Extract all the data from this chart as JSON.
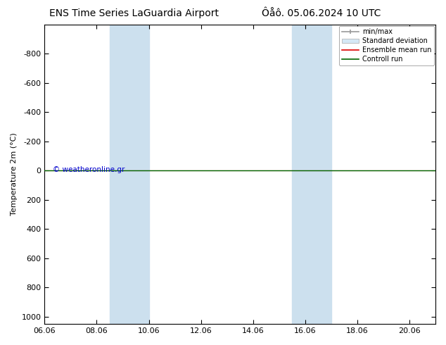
{
  "title_left": "ENS Time Series LaGuardia Airport",
  "title_right": "Ôåô. 05.06.2024 10 UTC",
  "ylabel": "Temperature 2m (°C)",
  "ylim": [
    -1000,
    1050
  ],
  "yticks": [
    -800,
    -600,
    -400,
    -200,
    0,
    200,
    400,
    600,
    800,
    1000
  ],
  "xlim": [
    0,
    15
  ],
  "xtick_labels": [
    "06.06",
    "08.06",
    "10.06",
    "12.06",
    "14.06",
    "16.06",
    "18.06",
    "20.06"
  ],
  "xtick_positions": [
    0,
    2,
    4,
    6,
    8,
    10,
    12,
    14
  ],
  "shade_regions": [
    {
      "start": 2.5,
      "end": 4.0,
      "color": "#cce0ee"
    },
    {
      "start": 9.5,
      "end": 11.0,
      "color": "#cce0ee"
    }
  ],
  "line_red_color": "#dd0000",
  "line_green_color": "#006600",
  "background_color": "#ffffff",
  "watermark": "© weatheronline.gr",
  "watermark_color": "#0000cc",
  "legend_items": [
    "min/max",
    "Standard deviation",
    "Ensemble mean run",
    "Controll run"
  ],
  "legend_colors_line": [
    "#999999",
    "#cccccc",
    "#dd0000",
    "#006600"
  ],
  "title_fontsize": 10,
  "axis_fontsize": 8,
  "tick_fontsize": 8
}
